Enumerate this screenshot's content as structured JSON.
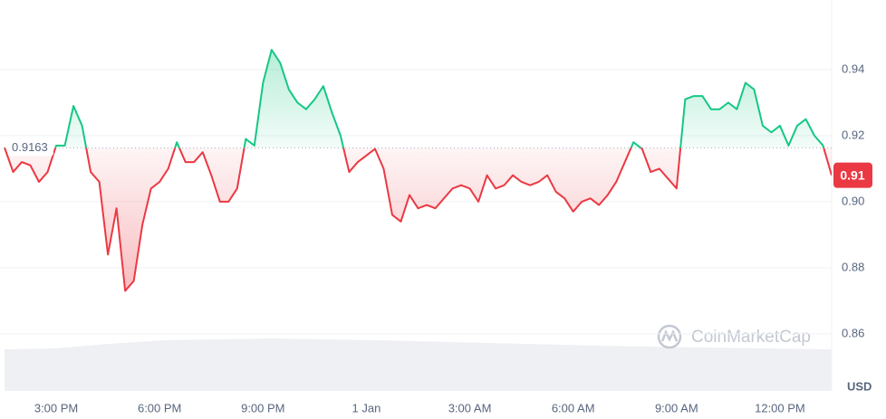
{
  "chart_data": {
    "type": "line",
    "categories": [
      null,
      null,
      null,
      null,
      null,
      null,
      "3:00 PM",
      null,
      null,
      null,
      null,
      null,
      null,
      null,
      null,
      null,
      null,
      null,
      "6:00 PM",
      null,
      null,
      null,
      null,
      null,
      null,
      null,
      null,
      null,
      null,
      null,
      "9:00 PM",
      null,
      null,
      null,
      null,
      null,
      null,
      null,
      null,
      null,
      null,
      null,
      "1 Jan",
      null,
      null,
      null,
      null,
      null,
      null,
      null,
      null,
      null,
      null,
      null,
      "3:00 AM",
      null,
      null,
      null,
      null,
      null,
      null,
      null,
      null,
      null,
      null,
      null,
      "6:00 AM",
      null,
      null,
      null,
      null,
      null,
      null,
      null,
      null,
      null,
      null,
      null,
      "9:00 AM",
      null,
      null,
      null,
      null,
      null,
      null,
      null,
      null,
      null,
      null,
      null,
      "12:00 PM",
      null,
      null,
      null,
      null,
      null,
      null
    ],
    "values": [
      0.9164,
      0.909,
      0.912,
      0.911,
      0.906,
      0.909,
      0.917,
      0.917,
      0.929,
      0.923,
      0.909,
      0.906,
      0.884,
      0.898,
      0.873,
      0.876,
      0.893,
      0.904,
      0.906,
      0.91,
      0.918,
      0.912,
      0.912,
      0.915,
      0.908,
      0.9,
      0.9,
      0.904,
      0.919,
      0.917,
      0.936,
      0.946,
      0.942,
      0.934,
      0.93,
      0.928,
      0.931,
      0.935,
      0.927,
      0.92,
      0.909,
      0.912,
      0.914,
      0.916,
      0.91,
      0.896,
      0.894,
      0.902,
      0.898,
      0.899,
      0.898,
      0.901,
      0.904,
      0.905,
      0.904,
      0.9,
      0.908,
      0.904,
      0.905,
      0.908,
      0.906,
      0.905,
      0.906,
      0.908,
      0.903,
      0.901,
      0.897,
      0.9,
      0.901,
      0.899,
      0.902,
      0.906,
      0.912,
      0.918,
      0.916,
      0.909,
      0.91,
      0.907,
      0.904,
      0.931,
      0.932,
      0.932,
      0.928,
      0.928,
      0.93,
      0.928,
      0.936,
      0.934,
      0.923,
      0.921,
      0.923,
      0.917,
      0.923,
      0.925,
      0.92,
      0.917,
      0.908
    ],
    "baseline": 0.9163,
    "price_tag": "0.91",
    "up_color": "#16c784",
    "down_color": "#ea3943",
    "ylim": [
      0.8427,
      0.9597
    ],
    "yticks": [
      0.86,
      0.88,
      {
        "value": 0.9,
        "label": "0.90"
      },
      0.92,
      0.94
    ],
    "y_unit": "USD",
    "watermark": "CoinMarketCap",
    "grid": true
  }
}
